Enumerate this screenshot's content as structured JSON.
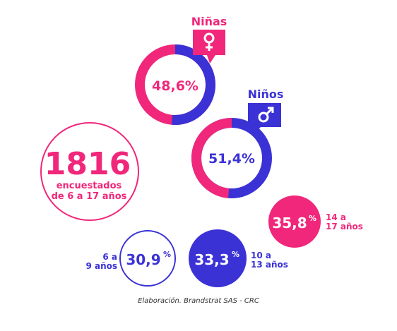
{
  "colors": {
    "pink": "#f0277a",
    "blue": "#3b32d6",
    "ring_bg": "#ffffff"
  },
  "total": {
    "number": "1816",
    "line1": "encuestados",
    "line2": "de 6 a 17 años"
  },
  "ninas": {
    "label": "Niñas",
    "value_text": "48,6%",
    "icon": "female-icon"
  },
  "ninos": {
    "label": "Niños",
    "value_text": "51,4%",
    "icon": "male-icon"
  },
  "age_groups": [
    {
      "value": "35,8",
      "pct": "%",
      "line1": "14 a",
      "line2": "17 años"
    },
    {
      "value": "33,3",
      "pct": "%",
      "line1": "10 a",
      "line2": "13 años"
    },
    {
      "value": "30,9",
      "pct": "%",
      "line1": "6 a",
      "line2": "9 años"
    }
  ],
  "source": "Elaboración. Brandstrat SAS - CRC",
  "chart_data": [
    {
      "type": "pie",
      "categories": [
        "Niñas",
        "Niños"
      ],
      "values": [
        48.6,
        51.4
      ],
      "units": "%"
    },
    {
      "type": "bar",
      "categories": [
        "6 a 9 años",
        "10 a 13 años",
        "14 a 17 años"
      ],
      "values": [
        30.9,
        33.3,
        35.8
      ],
      "units": "%"
    }
  ]
}
